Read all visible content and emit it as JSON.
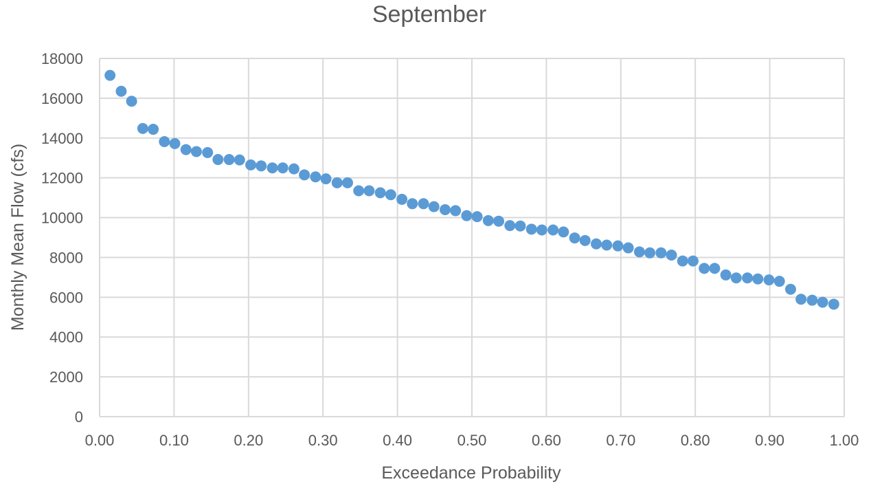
{
  "chart_data": {
    "type": "scatter",
    "title": "September",
    "xlabel": "Exceedance Probability",
    "ylabel": "Monthly Mean Flow (cfs)",
    "xlim": [
      0,
      1
    ],
    "ylim": [
      0,
      18000
    ],
    "xticks": [
      "0.00",
      "0.10",
      "0.20",
      "0.30",
      "0.40",
      "0.50",
      "0.60",
      "0.70",
      "0.80",
      "0.90",
      "1.00"
    ],
    "yticks": [
      "0",
      "2000",
      "4000",
      "6000",
      "8000",
      "10000",
      "12000",
      "14000",
      "16000",
      "18000"
    ],
    "grid": true,
    "marker_color": "#5B9BD5",
    "gridline_color": "#D9D9D9",
    "series": [
      {
        "x": [
          0.014,
          0.029,
          0.043,
          0.058,
          0.072,
          0.087,
          0.101,
          0.116,
          0.13,
          0.145,
          0.159,
          0.174,
          0.188,
          0.203,
          0.217,
          0.232,
          0.246,
          0.261,
          0.275,
          0.29,
          0.304,
          0.319,
          0.333,
          0.348,
          0.362,
          0.377,
          0.391,
          0.406,
          0.42,
          0.435,
          0.449,
          0.464,
          0.478,
          0.493,
          0.507,
          0.522,
          0.536,
          0.551,
          0.565,
          0.58,
          0.594,
          0.609,
          0.623,
          0.638,
          0.652,
          0.667,
          0.681,
          0.696,
          0.71,
          0.725,
          0.739,
          0.754,
          0.768,
          0.783,
          0.797,
          0.812,
          0.826,
          0.841,
          0.855,
          0.87,
          0.884,
          0.899,
          0.913,
          0.928,
          0.942,
          0.957,
          0.971,
          0.986
        ],
        "y": [
          17150,
          16350,
          15850,
          14480,
          14440,
          13820,
          13720,
          13420,
          13320,
          13270,
          12920,
          12920,
          12900,
          12650,
          12600,
          12500,
          12500,
          12450,
          12150,
          12050,
          11950,
          11750,
          11750,
          11350,
          11350,
          11250,
          11150,
          10920,
          10700,
          10700,
          10550,
          10400,
          10350,
          10100,
          10050,
          9850,
          9820,
          9600,
          9580,
          9420,
          9380,
          9380,
          9280,
          8980,
          8850,
          8680,
          8620,
          8580,
          8480,
          8280,
          8230,
          8230,
          8120,
          7820,
          7820,
          7450,
          7450,
          7120,
          6970,
          6970,
          6920,
          6870,
          6800,
          6400,
          5900,
          5850,
          5750,
          5650
        ]
      }
    ]
  }
}
